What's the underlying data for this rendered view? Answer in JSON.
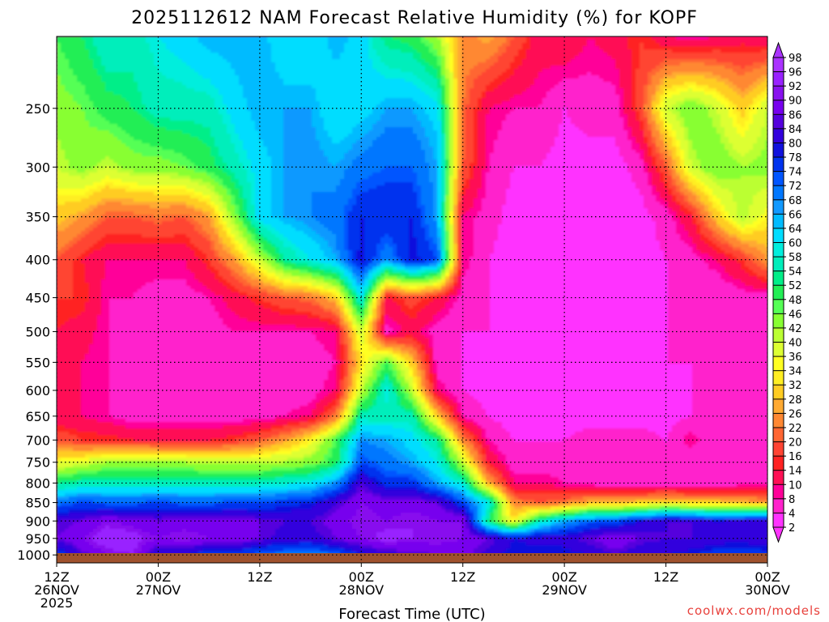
{
  "chart_data": {
    "type": "heatmap",
    "title": "2025112612 NAM Forecast Relative Humidity (%) for KOPF",
    "xlabel": "Forecast Time (UTC)",
    "ylabel": "",
    "credit": "coolwx.com/models",
    "y_axis": {
      "kind": "pressure_hPa",
      "reversed": true,
      "log_scale": true,
      "ylim": [
        1025,
        200
      ],
      "ticks": [
        250,
        300,
        350,
        400,
        450,
        500,
        550,
        600,
        650,
        700,
        750,
        800,
        850,
        900,
        950,
        1000
      ]
    },
    "x_axis": {
      "xlim": [
        0,
        84
      ],
      "unit": "hours",
      "ticks": [
        {
          "hour": 0,
          "lines": [
            "12Z",
            "26NOV",
            "2025"
          ]
        },
        {
          "hour": 12,
          "lines": [
            "00Z",
            "27NOV"
          ]
        },
        {
          "hour": 24,
          "lines": [
            "12Z"
          ]
        },
        {
          "hour": 36,
          "lines": [
            "00Z",
            "28NOV"
          ]
        },
        {
          "hour": 48,
          "lines": [
            "12Z"
          ]
        },
        {
          "hour": 60,
          "lines": [
            "00Z",
            "29NOV"
          ]
        },
        {
          "hour": 72,
          "lines": [
            "12Z"
          ]
        },
        {
          "hour": 84,
          "lines": [
            "00Z",
            "30NOV"
          ]
        }
      ]
    },
    "grid": true,
    "colorbar": {
      "levels": [
        2,
        4,
        8,
        10,
        14,
        16,
        20,
        22,
        26,
        28,
        32,
        34,
        36,
        40,
        42,
        46,
        48,
        52,
        54,
        58,
        60,
        64,
        66,
        68,
        72,
        74,
        78,
        80,
        84,
        86,
        90,
        92,
        96,
        98
      ],
      "colors": [
        "#ff33ff",
        "#ff22cc",
        "#ff0099",
        "#ff1155",
        "#ff2222",
        "#ff4433",
        "#ff6633",
        "#ff8833",
        "#ffaa33",
        "#ffcc22",
        "#ffee22",
        "#ffff22",
        "#ddff33",
        "#bbff33",
        "#88ff33",
        "#55ff55",
        "#22ee55",
        "#00ee88",
        "#00eebb",
        "#00eedd",
        "#00ddff",
        "#00bbff",
        "#1199ff",
        "#0077ff",
        "#0055ff",
        "#0033ee",
        "#1111dd",
        "#3300dd",
        "#5500dd",
        "#7700ee",
        "#8811ee",
        "#9922ff",
        "#aa33ff"
      ],
      "extend": "both"
    },
    "rh_grid": {
      "hours": [
        0,
        3,
        6,
        9,
        12,
        15,
        18,
        21,
        24,
        27,
        30,
        33,
        36,
        39,
        42,
        45,
        48,
        51,
        54,
        57,
        60,
        63,
        66,
        69,
        72,
        75,
        78,
        81,
        84
      ],
      "levels_hPa": [
        200,
        250,
        300,
        350,
        400,
        450,
        500,
        550,
        600,
        650,
        700,
        750,
        800,
        850,
        900,
        950,
        1000
      ],
      "values": [
        [
          48,
          52,
          58,
          56,
          60,
          62,
          66,
          66,
          66,
          60,
          60,
          66,
          62,
          52,
          50,
          42,
          24,
          28,
          20,
          12,
          14,
          10,
          12,
          16,
          10,
          8,
          10,
          12,
          10
        ],
        [
          44,
          46,
          50,
          52,
          56,
          56,
          56,
          62,
          66,
          66,
          66,
          60,
          62,
          66,
          66,
          62,
          22,
          10,
          8,
          8,
          4,
          6,
          6,
          18,
          40,
          46,
          40,
          30,
          40
        ],
        [
          40,
          44,
          40,
          44,
          44,
          46,
          50,
          56,
          62,
          66,
          68,
          66,
          70,
          72,
          72,
          66,
          20,
          8,
          4,
          4,
          2,
          2,
          2,
          6,
          20,
          40,
          46,
          42,
          44
        ],
        [
          30,
          26,
          20,
          20,
          22,
          20,
          26,
          44,
          62,
          66,
          68,
          70,
          78,
          78,
          78,
          66,
          10,
          6,
          2,
          2,
          2,
          2,
          2,
          2,
          6,
          14,
          30,
          42,
          34
        ],
        [
          20,
          14,
          10,
          10,
          10,
          10,
          16,
          26,
          40,
          54,
          60,
          66,
          80,
          68,
          80,
          74,
          10,
          4,
          2,
          2,
          2,
          2,
          2,
          2,
          4,
          6,
          10,
          16,
          26
        ],
        [
          16,
          16,
          8,
          8,
          6,
          6,
          8,
          12,
          16,
          20,
          22,
          30,
          60,
          14,
          18,
          14,
          6,
          4,
          2,
          2,
          2,
          2,
          2,
          2,
          4,
          6,
          4,
          6,
          6
        ],
        [
          14,
          12,
          8,
          6,
          6,
          6,
          6,
          8,
          8,
          8,
          8,
          10,
          40,
          6,
          12,
          6,
          4,
          4,
          2,
          2,
          2,
          2,
          2,
          2,
          4,
          4,
          4,
          4,
          4
        ],
        [
          12,
          10,
          8,
          6,
          6,
          6,
          6,
          6,
          6,
          6,
          6,
          8,
          32,
          48,
          30,
          6,
          4,
          2,
          2,
          2,
          2,
          2,
          2,
          2,
          4,
          4,
          4,
          4,
          4
        ],
        [
          10,
          10,
          8,
          6,
          6,
          6,
          6,
          6,
          6,
          6,
          6,
          10,
          40,
          60,
          40,
          10,
          4,
          2,
          2,
          2,
          2,
          2,
          2,
          2,
          2,
          4,
          4,
          4,
          4
        ],
        [
          10,
          10,
          8,
          6,
          6,
          6,
          6,
          6,
          6,
          8,
          10,
          22,
          56,
          56,
          56,
          30,
          8,
          4,
          2,
          2,
          2,
          2,
          2,
          2,
          2,
          4,
          4,
          4,
          4
        ],
        [
          20,
          16,
          16,
          14,
          14,
          14,
          14,
          16,
          20,
          26,
          34,
          48,
          68,
          66,
          62,
          54,
          24,
          8,
          4,
          4,
          4,
          6,
          6,
          6,
          4,
          10,
          4,
          4,
          4
        ],
        [
          36,
          38,
          42,
          44,
          42,
          42,
          40,
          40,
          40,
          42,
          44,
          50,
          74,
          70,
          66,
          60,
          40,
          14,
          6,
          6,
          6,
          4,
          6,
          4,
          4,
          4,
          4,
          4,
          6
        ],
        [
          52,
          56,
          56,
          56,
          56,
          56,
          56,
          56,
          56,
          58,
          60,
          68,
          84,
          76,
          76,
          66,
          58,
          28,
          10,
          10,
          8,
          6,
          4,
          4,
          4,
          4,
          4,
          6,
          6
        ],
        [
          70,
          74,
          72,
          72,
          74,
          72,
          72,
          74,
          74,
          76,
          78,
          84,
          90,
          88,
          88,
          86,
          74,
          60,
          24,
          20,
          22,
          28,
          28,
          30,
          32,
          30,
          30,
          28,
          26
        ],
        [
          84,
          86,
          90,
          88,
          86,
          88,
          88,
          88,
          86,
          84,
          84,
          88,
          92,
          90,
          92,
          90,
          90,
          52,
          34,
          56,
          66,
          72,
          74,
          80,
          84,
          84,
          80,
          82,
          84
        ],
        [
          86,
          90,
          96,
          94,
          90,
          92,
          90,
          90,
          86,
          82,
          82,
          86,
          90,
          94,
          92,
          92,
          90,
          86,
          80,
          82,
          82,
          86,
          90,
          86,
          84,
          84,
          82,
          82,
          84
        ],
        [
          74,
          84,
          90,
          92,
          80,
          80,
          74,
          74,
          72,
          70,
          68,
          72,
          78,
          82,
          84,
          86,
          88,
          82,
          78,
          78,
          78,
          80,
          84,
          80,
          80,
          78,
          76,
          74,
          76
        ]
      ]
    }
  }
}
